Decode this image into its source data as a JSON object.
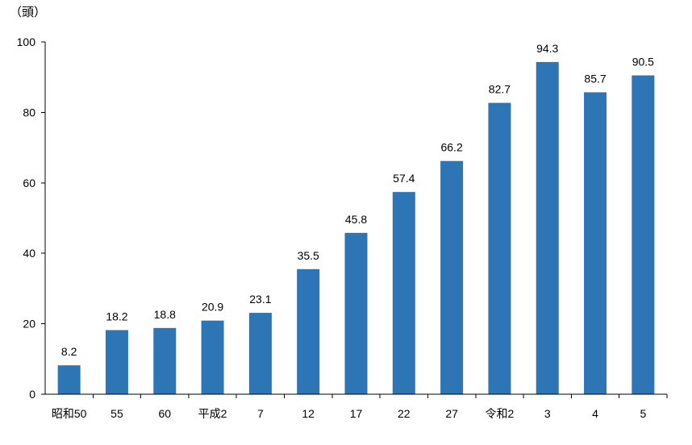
{
  "chart_data": {
    "type": "bar",
    "ylabel": "（頭）",
    "categories": [
      "昭和50",
      "55",
      "60",
      "平成2",
      "7",
      "12",
      "17",
      "22",
      "27",
      "令和2",
      "3",
      "4",
      "5"
    ],
    "values": [
      8.2,
      18.2,
      18.8,
      20.9,
      23.1,
      35.5,
      45.8,
      57.4,
      66.2,
      82.7,
      94.3,
      85.7,
      90.5
    ],
    "data_labels": [
      "8.2",
      "18.2",
      "18.8",
      "20.9",
      "23.1",
      "35.5",
      "45.8",
      "57.4",
      "66.2",
      "82.7",
      "94.3",
      "85.7",
      "90.5"
    ],
    "ylim": [
      0,
      100
    ],
    "yticks": [
      "0",
      "20",
      "40",
      "60",
      "80",
      "100"
    ],
    "grid": false,
    "bar_color": "#2E75B6"
  }
}
